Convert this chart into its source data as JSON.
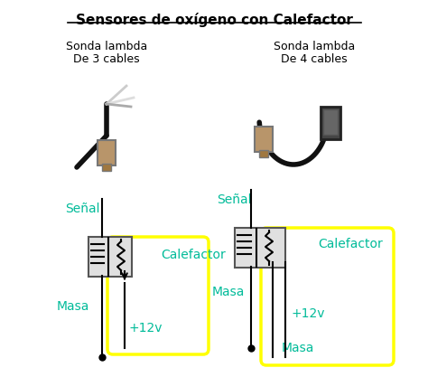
{
  "title": "Sensores de oxígeno con Calefactor",
  "bg_color": "#ffffff",
  "text_color_green": "#00bb99",
  "text_color_black": "#000000",
  "yellow_color": "#ffff00",
  "left_label1": "Sonda lambda",
  "left_label2": "De 3 cables",
  "right_label1": "Sonda lambda",
  "right_label2": "De 4 cables",
  "left_senal": "Señal",
  "left_masa1": "Masa",
  "left_calefactor": "Calefactor",
  "left_12v": "+12v",
  "right_senal": "Señal",
  "right_masa1": "Masa",
  "right_calefactor": "Calefactor",
  "right_12v": "+12v",
  "right_masa2": "Masa"
}
